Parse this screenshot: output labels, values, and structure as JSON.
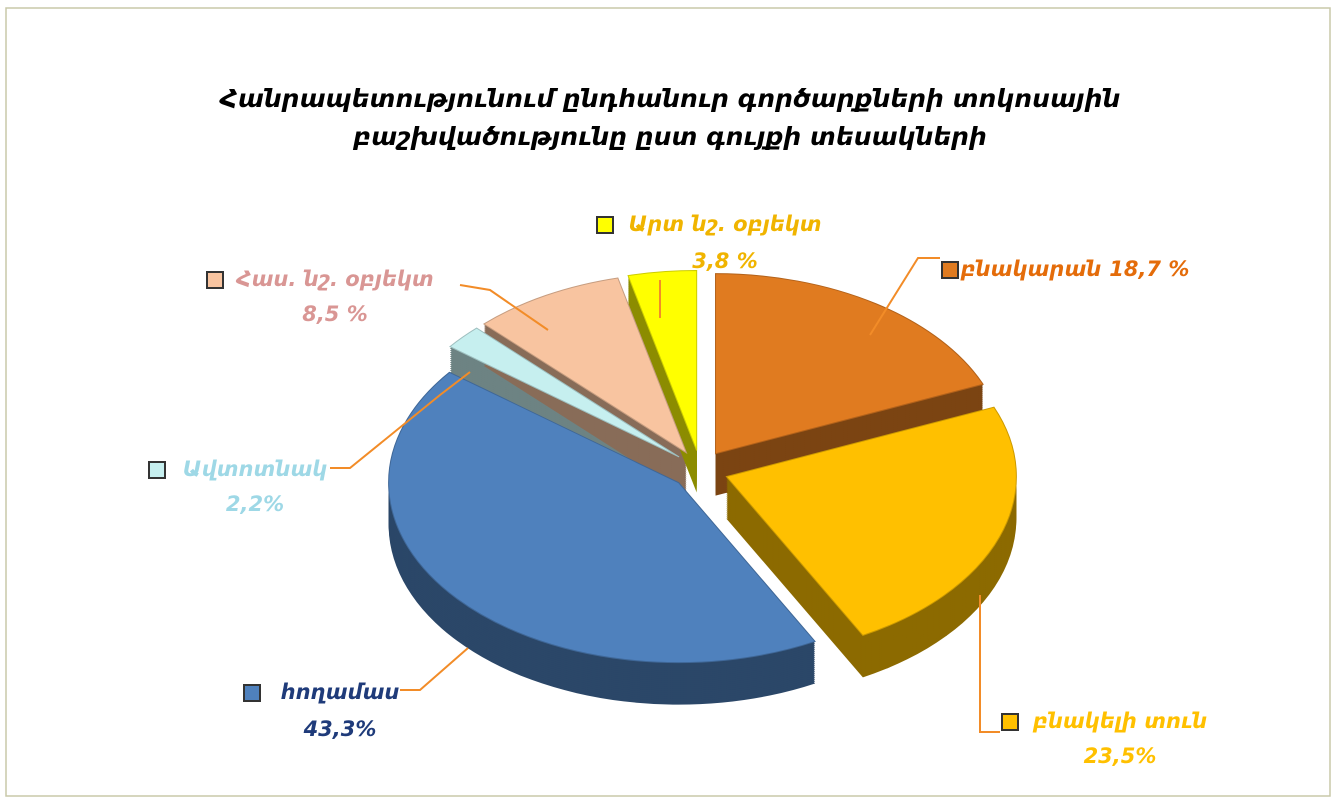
{
  "chart_data": {
    "type": "pie",
    "title": [
      "Հանրապետությունում ընդհանուր  գործարքների տոկոսային",
      "բաշխվածությունը ըստ գույքի տեսակների"
    ],
    "categories": [
      "բնակարան",
      "բնակելի տուն",
      "հողամաս",
      "Ավտոտնակ",
      "Հաս. նշ. օբյեկտ",
      "Արտ նշ. օբյեկտ"
    ],
    "values": [
      18.7,
      23.5,
      43.3,
      2.2,
      8.5,
      3.8
    ],
    "value_labels": [
      "18,7 %",
      "23,5%",
      "43,3%",
      "2,2%",
      "8,5 %",
      "3,8 %"
    ],
    "colors": [
      "#e07b20",
      "#ffc000",
      "#4f81bd",
      "#c6efef",
      "#f8c4a0",
      "#ffff00"
    ],
    "label_colors": [
      "#e46c0a",
      "#ffc000",
      "#1f3b7a",
      "#9ed8e6",
      "#d99694",
      "#f0b400"
    ]
  }
}
